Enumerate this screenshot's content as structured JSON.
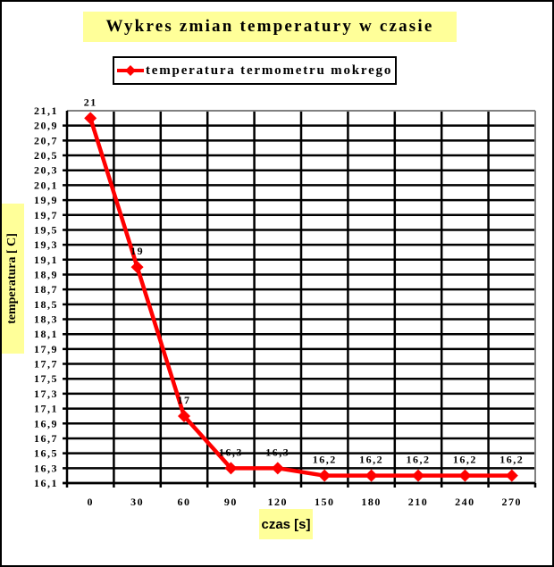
{
  "chart_data": {
    "type": "line",
    "title": "Wykres zmian temperatury w czasie",
    "xlabel": "czas [s]",
    "ylabel": "temperatura [ C]",
    "categories": [
      "0",
      "30",
      "60",
      "90",
      "120",
      "150",
      "180",
      "210",
      "240",
      "270"
    ],
    "series": [
      {
        "name": "temperatura termometru mokrego",
        "values": [
          21,
          19,
          17,
          16.3,
          16.3,
          16.2,
          16.2,
          16.2,
          16.2,
          16.2
        ],
        "data_labels": [
          "21",
          "19",
          "17",
          "16,3",
          "16,3",
          "16,2",
          "16,2",
          "16,2",
          "16,2",
          "16,2"
        ],
        "color": "#ff0000",
        "marker": "diamond"
      }
    ],
    "ylim": [
      16.1,
      21.1
    ],
    "yticks": [
      "21,1",
      "20,9",
      "20,7",
      "20,5",
      "20,3",
      "20,1",
      "19,9",
      "19,7",
      "19,5",
      "19,3",
      "19,1",
      "18,9",
      "18,7",
      "18,5",
      "18,3",
      "18,1",
      "17,9",
      "17,7",
      "17,5",
      "17,3",
      "17,1",
      "16,9",
      "16,7",
      "16,5",
      "16,3",
      "16,1"
    ],
    "grid": true,
    "legend_position": "top"
  },
  "title": "Wykres zmian temperatury w czasie",
  "legend": {
    "label": "temperatura termometru mokrego"
  },
  "axes": {
    "x_title": "czas [s]",
    "y_title": "temperatura [ C]"
  },
  "colors": {
    "line": "#ff0000",
    "title_bg": "#ffff99",
    "grid": "#000000",
    "plot_border": "#808080"
  }
}
